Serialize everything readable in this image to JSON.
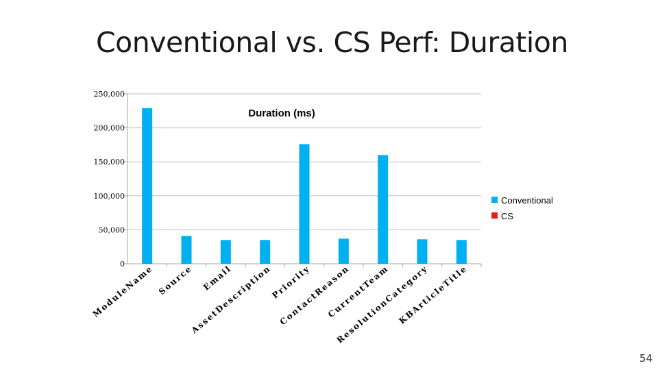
{
  "slide": {
    "title": "Conventional vs. CS Perf: Duration",
    "page_number": "54"
  },
  "colors": {
    "conventional": "#00b0f0",
    "cs": "#e0201a",
    "axis": "#a6a6a6",
    "grid": "#bfbfbf"
  },
  "chart_data": {
    "type": "bar",
    "title": "Duration (ms)",
    "categories": [
      "ModuleName",
      "Source",
      "Email",
      "AssetDescription",
      "Priority",
      "ContactReason",
      "CurrentTeam",
      "ResolutionCategory",
      "KBArticleTitle"
    ],
    "series": [
      {
        "name": "Conventional",
        "values": [
          229000,
          41000,
          35000,
          35000,
          176000,
          37000,
          160000,
          36000,
          35000
        ]
      },
      {
        "name": "CS",
        "values": [
          0,
          0,
          0,
          0,
          0,
          0,
          0,
          0,
          0
        ]
      }
    ],
    "ylim": [
      0,
      250000
    ],
    "yticks": [
      "0",
      "50,000",
      "100,000",
      "150,000",
      "200,000",
      "250,000"
    ],
    "grid": true,
    "legend_position": "right"
  }
}
